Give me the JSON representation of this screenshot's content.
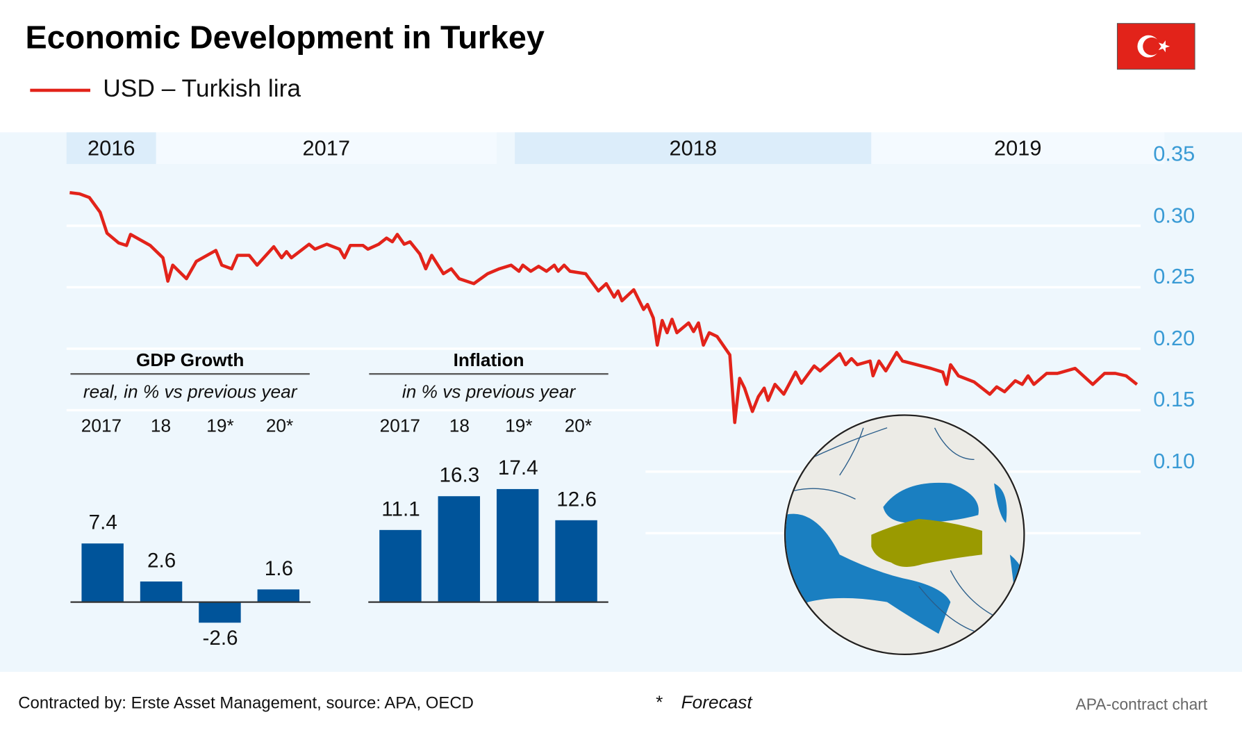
{
  "title": "Economic Development in Turkey",
  "legend": {
    "label": "USD – Turkish lira",
    "color": "#e2231a"
  },
  "flag": {
    "icon": "turkey-flag",
    "color": "#e2231a"
  },
  "colors": {
    "line": "#e2231a",
    "bar": "#00549a",
    "axis_text": "#3a9bd5",
    "panel": "#eef7fd",
    "turkey": "#9a9a00",
    "sea": "#1a7fc1",
    "land": "#ecebe6"
  },
  "chart_data": [
    {
      "type": "line",
      "title": "",
      "series": [
        {
          "name": "USD – Turkish lira",
          "points": [
            [
              "2016-10-05",
              0.319
            ],
            [
              "2016-10-15",
              0.318
            ],
            [
              "2016-10-25",
              0.315
            ],
            [
              "2016-11-05",
              0.303
            ],
            [
              "2016-11-12",
              0.286
            ],
            [
              "2016-11-24",
              0.278
            ],
            [
              "2016-12-02",
              0.276
            ],
            [
              "2016-12-06",
              0.285
            ],
            [
              "2016-12-26",
              0.276
            ],
            [
              "2017-01-08",
              0.266
            ],
            [
              "2017-01-13",
              0.247
            ],
            [
              "2017-01-18",
              0.26
            ],
            [
              "2017-02-01",
              0.249
            ],
            [
              "2017-02-11",
              0.263
            ],
            [
              "2017-03-03",
              0.272
            ],
            [
              "2017-03-09",
              0.26
            ],
            [
              "2017-03-19",
              0.257
            ],
            [
              "2017-03-25",
              0.268
            ],
            [
              "2017-04-06",
              0.268
            ],
            [
              "2017-04-14",
              0.26
            ],
            [
              "2017-05-01",
              0.275
            ],
            [
              "2017-05-09",
              0.266
            ],
            [
              "2017-05-14",
              0.271
            ],
            [
              "2017-05-19",
              0.266
            ],
            [
              "2017-06-06",
              0.277
            ],
            [
              "2017-06-12",
              0.273
            ],
            [
              "2017-06-24",
              0.277
            ],
            [
              "2017-07-07",
              0.273
            ],
            [
              "2017-07-12",
              0.266
            ],
            [
              "2017-07-18",
              0.276
            ],
            [
              "2017-07-31",
              0.276
            ],
            [
              "2017-08-05",
              0.273
            ],
            [
              "2017-08-16",
              0.277
            ],
            [
              "2017-08-24",
              0.282
            ],
            [
              "2017-08-30",
              0.279
            ],
            [
              "2017-09-04",
              0.285
            ],
            [
              "2017-09-11",
              0.277
            ],
            [
              "2017-09-17",
              0.279
            ],
            [
              "2017-09-27",
              0.269
            ],
            [
              "2017-10-03",
              0.257
            ],
            [
              "2017-10-09",
              0.268
            ],
            [
              "2017-10-21",
              0.253
            ],
            [
              "2017-10-29",
              0.257
            ],
            [
              "2017-11-06",
              0.249
            ],
            [
              "2017-11-21",
              0.245
            ],
            [
              "2017-12-05",
              0.253
            ],
            [
              "2017-12-17",
              0.257
            ],
            [
              "2017-12-29",
              0.26
            ],
            [
              "2018-01-06",
              0.255
            ],
            [
              "2018-01-10",
              0.26
            ],
            [
              "2018-01-18",
              0.255
            ],
            [
              "2018-01-26",
              0.259
            ],
            [
              "2018-02-03",
              0.255
            ],
            [
              "2018-02-11",
              0.26
            ],
            [
              "2018-02-15",
              0.255
            ],
            [
              "2018-02-21",
              0.26
            ],
            [
              "2018-02-27",
              0.255
            ],
            [
              "2018-03-15",
              0.253
            ],
            [
              "2018-03-28",
              0.239
            ],
            [
              "2018-04-05",
              0.245
            ],
            [
              "2018-04-13",
              0.234
            ],
            [
              "2018-04-17",
              0.239
            ],
            [
              "2018-04-21",
              0.231
            ],
            [
              "2018-05-03",
              0.24
            ],
            [
              "2018-05-13",
              0.224
            ],
            [
              "2018-05-17",
              0.228
            ],
            [
              "2018-05-23",
              0.217
            ],
            [
              "2018-05-27",
              0.195
            ],
            [
              "2018-06-01",
              0.215
            ],
            [
              "2018-06-06",
              0.205
            ],
            [
              "2018-06-11",
              0.216
            ],
            [
              "2018-06-16",
              0.205
            ],
            [
              "2018-06-28",
              0.213
            ],
            [
              "2018-07-03",
              0.206
            ],
            [
              "2018-07-08",
              0.213
            ],
            [
              "2018-07-13",
              0.195
            ],
            [
              "2018-07-19",
              0.205
            ],
            [
              "2018-07-27",
              0.202
            ],
            [
              "2018-08-09",
              0.187
            ],
            [
              "2018-08-14",
              0.132
            ],
            [
              "2018-08-19",
              0.168
            ],
            [
              "2018-08-24",
              0.16
            ],
            [
              "2018-09-01",
              0.141
            ],
            [
              "2018-09-07",
              0.153
            ],
            [
              "2018-09-13",
              0.16
            ],
            [
              "2018-09-17",
              0.15
            ],
            [
              "2018-09-24",
              0.163
            ],
            [
              "2018-10-03",
              0.155
            ],
            [
              "2018-10-15",
              0.173
            ],
            [
              "2018-10-21",
              0.164
            ],
            [
              "2018-11-03",
              0.178
            ],
            [
              "2018-11-09",
              0.174
            ],
            [
              "2018-11-29",
              0.188
            ],
            [
              "2018-12-05",
              0.179
            ],
            [
              "2018-12-11",
              0.184
            ],
            [
              "2018-12-17",
              0.179
            ],
            [
              "2018-12-30",
              0.182
            ],
            [
              "2019-01-02",
              0.17
            ],
            [
              "2019-01-08",
              0.182
            ],
            [
              "2019-01-15",
              0.174
            ],
            [
              "2019-01-26",
              0.189
            ],
            [
              "2019-02-01",
              0.182
            ],
            [
              "2019-03-02",
              0.176
            ],
            [
              "2019-03-14",
              0.173
            ],
            [
              "2019-03-18",
              0.163
            ],
            [
              "2019-03-22",
              0.179
            ],
            [
              "2019-03-30",
              0.17
            ],
            [
              "2019-04-15",
              0.165
            ],
            [
              "2019-05-01",
              0.155
            ],
            [
              "2019-05-08",
              0.161
            ],
            [
              "2019-05-16",
              0.157
            ],
            [
              "2019-05-27",
              0.166
            ],
            [
              "2019-06-03",
              0.163
            ],
            [
              "2019-06-09",
              0.17
            ],
            [
              "2019-06-15",
              0.163
            ],
            [
              "2019-06-28",
              0.172
            ],
            [
              "2019-07-09",
              0.172
            ],
            [
              "2019-07-27",
              0.176
            ],
            [
              "2019-08-14",
              0.163
            ],
            [
              "2019-08-26",
              0.172
            ],
            [
              "2019-09-06",
              0.172
            ],
            [
              "2019-09-17",
              0.17
            ],
            [
              "2019-09-28",
              0.163
            ]
          ]
        }
      ],
      "x_labels": [
        "2016",
        "2017",
        "2018",
        "2019"
      ],
      "y_ticks": [
        "0.35",
        "0.30",
        "0.25",
        "0.20",
        "0.15",
        "0.10"
      ],
      "ylim": [
        0.1,
        0.35
      ],
      "y_axis_side": "right",
      "grid": true
    },
    {
      "type": "bar",
      "title": "GDP Growth",
      "subtitle": "real, in % vs previous year",
      "categories": [
        "2017",
        "18",
        "19*",
        "20*"
      ],
      "values": [
        7.4,
        2.6,
        -2.6,
        1.6
      ],
      "labels": [
        "7.4",
        "2.6",
        "-2.6",
        "1.6"
      ]
    },
    {
      "type": "bar",
      "title": "Inflation",
      "subtitle": "in % vs previous year",
      "categories": [
        "2017",
        "18",
        "19*",
        "20*"
      ],
      "values": [
        11.1,
        16.3,
        17.4,
        12.6
      ],
      "labels": [
        "11.1",
        "16.3",
        "17.4",
        "12.6"
      ]
    }
  ],
  "map": {
    "icon": "turkey-locator-globe"
  },
  "footer": {
    "source": "Contracted by: Erste Asset Management, source: APA, OECD",
    "forecast_star": "*",
    "forecast": "Forecast",
    "credit": "APA-contract chart"
  }
}
